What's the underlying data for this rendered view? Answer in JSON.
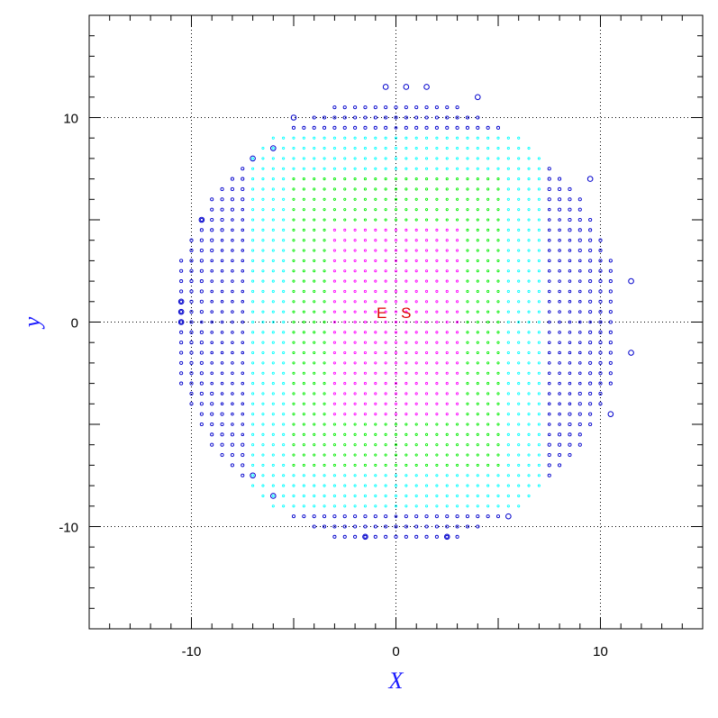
{
  "chart_data": {
    "type": "scatter",
    "xlabel": "X",
    "ylabel": "y",
    "xlim": [
      -15,
      15
    ],
    "ylim": [
      -15,
      15
    ],
    "major_ticks": [
      -10,
      0,
      10
    ],
    "minor_step": 1,
    "grid": true,
    "grid_lines_at": [
      -10,
      0,
      10
    ],
    "annotations": [
      {
        "text": "E",
        "x": -0.7,
        "y": 0.2
      },
      {
        "text": "S",
        "x": 0.5,
        "y": 0.2
      }
    ],
    "point_grid": {
      "spacing": 0.5,
      "boundary_radius": 11,
      "description_of_colors_by_zone": [
        {
          "zone": "inner",
          "color": "#ff00ff"
        },
        {
          "zone": "middle",
          "color": "#00ee00"
        },
        {
          "zone": "outer",
          "color": "#00ffff"
        },
        {
          "zone": "edge",
          "color": "#0000cc"
        }
      ]
    },
    "highlighted_points": [
      [
        -0.5,
        11.5
      ],
      [
        0.5,
        11.5
      ],
      [
        1.5,
        11.5
      ],
      [
        4,
        11
      ],
      [
        -5,
        10
      ],
      [
        -6,
        8.5
      ],
      [
        -7,
        8
      ],
      [
        9.5,
        7
      ],
      [
        -9.5,
        5
      ],
      [
        11.5,
        2
      ],
      [
        -10.5,
        1
      ],
      [
        -10.5,
        0.5
      ],
      [
        -10.5,
        0
      ],
      [
        11.5,
        -1.5
      ],
      [
        10.5,
        -4.5
      ],
      [
        -7,
        -7.5
      ],
      [
        -6,
        -8.5
      ],
      [
        5.5,
        -9.5
      ],
      [
        -1.5,
        -10.5
      ],
      [
        2.5,
        -10.5
      ]
    ]
  },
  "colors": {
    "edge": "#0000cc",
    "outer": "#00ffff",
    "middle": "#00ee00",
    "inner": "#ff00ff",
    "annotation": "#dd0000",
    "axis_title": "#1a1aff"
  }
}
